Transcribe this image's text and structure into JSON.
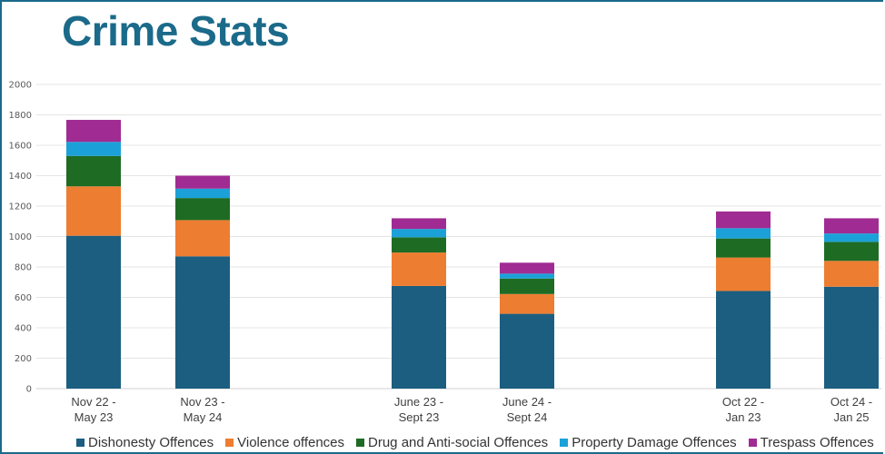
{
  "header": {
    "title": "Crime Stats"
  },
  "chart_data": {
    "type": "bar",
    "stacked": true,
    "title": "Crime Stats",
    "xlabel": "",
    "ylabel": "",
    "ylim": [
      0,
      2000
    ],
    "yticks": [
      0,
      200,
      400,
      600,
      800,
      1000,
      1200,
      1400,
      1600,
      1800,
      2000
    ],
    "grid": true,
    "legend_position": "bottom",
    "categories": [
      [
        "Nov 22 -",
        "May 23"
      ],
      [
        "Nov 23 -",
        "May 24"
      ],
      [
        "June 23 -",
        "Sept 23"
      ],
      [
        "June 24 -",
        "Sept 24"
      ],
      [
        "Oct 22 -",
        "Jan 23"
      ],
      [
        "Oct 24 -",
        "Jan 25"
      ]
    ],
    "series": [
      {
        "name": "Dishonesty Offences",
        "color": "#1b5e80",
        "values": [
          1005,
          870,
          675,
          492,
          642,
          670
        ]
      },
      {
        "name": "Violence offences",
        "color": "#ed7d31",
        "values": [
          325,
          238,
          220,
          130,
          220,
          170
        ]
      },
      {
        "name": "Drug and Anti-social Offences",
        "color": "#1e6b24",
        "values": [
          200,
          145,
          100,
          102,
          125,
          125
        ]
      },
      {
        "name": "Property Damage Offences",
        "color": "#1ba1d8",
        "values": [
          92,
          62,
          55,
          32,
          68,
          55
        ]
      },
      {
        "name": "Trespass Offences",
        "color": "#a02b93",
        "values": [
          145,
          85,
          70,
          72,
          110,
          100
        ]
      }
    ]
  }
}
